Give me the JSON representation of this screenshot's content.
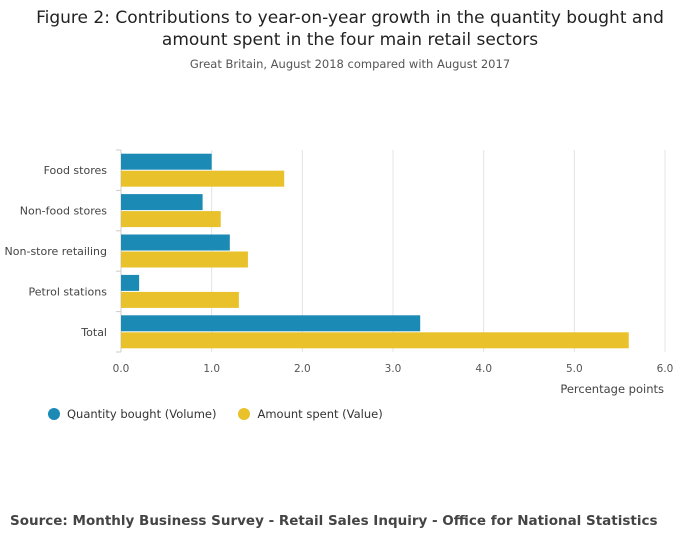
{
  "title_line1": "Figure 2: Contributions to year-on-year growth in the quantity bought and",
  "title_line2": "amount spent in the four main retail sectors",
  "subtitle": "Great Britain, August 2018 compared with August 2017",
  "source": "Source: Monthly Business Survey - Retail Sales Inquiry - Office for National Statistics",
  "chart_data": {
    "type": "bar",
    "orientation": "horizontal",
    "categories": [
      "Food stores",
      "Non-food stores",
      "Non-store retailing",
      "Petrol stations",
      "Total"
    ],
    "series": [
      {
        "name": "Quantity bought (Volume)",
        "color": "#1b8ab5",
        "values": [
          1.0,
          0.9,
          1.2,
          0.2,
          3.3
        ]
      },
      {
        "name": "Amount spent (Value)",
        "color": "#e8c12b",
        "values": [
          1.8,
          1.1,
          1.4,
          1.3,
          5.6
        ]
      }
    ],
    "xlabel": "Percentage points",
    "xlim": [
      0,
      6
    ],
    "xticks": [
      "0.0",
      "1.0",
      "2.0",
      "3.0",
      "4.0",
      "5.0",
      "6.0"
    ],
    "grid": true,
    "legend_position": "bottom-left"
  }
}
